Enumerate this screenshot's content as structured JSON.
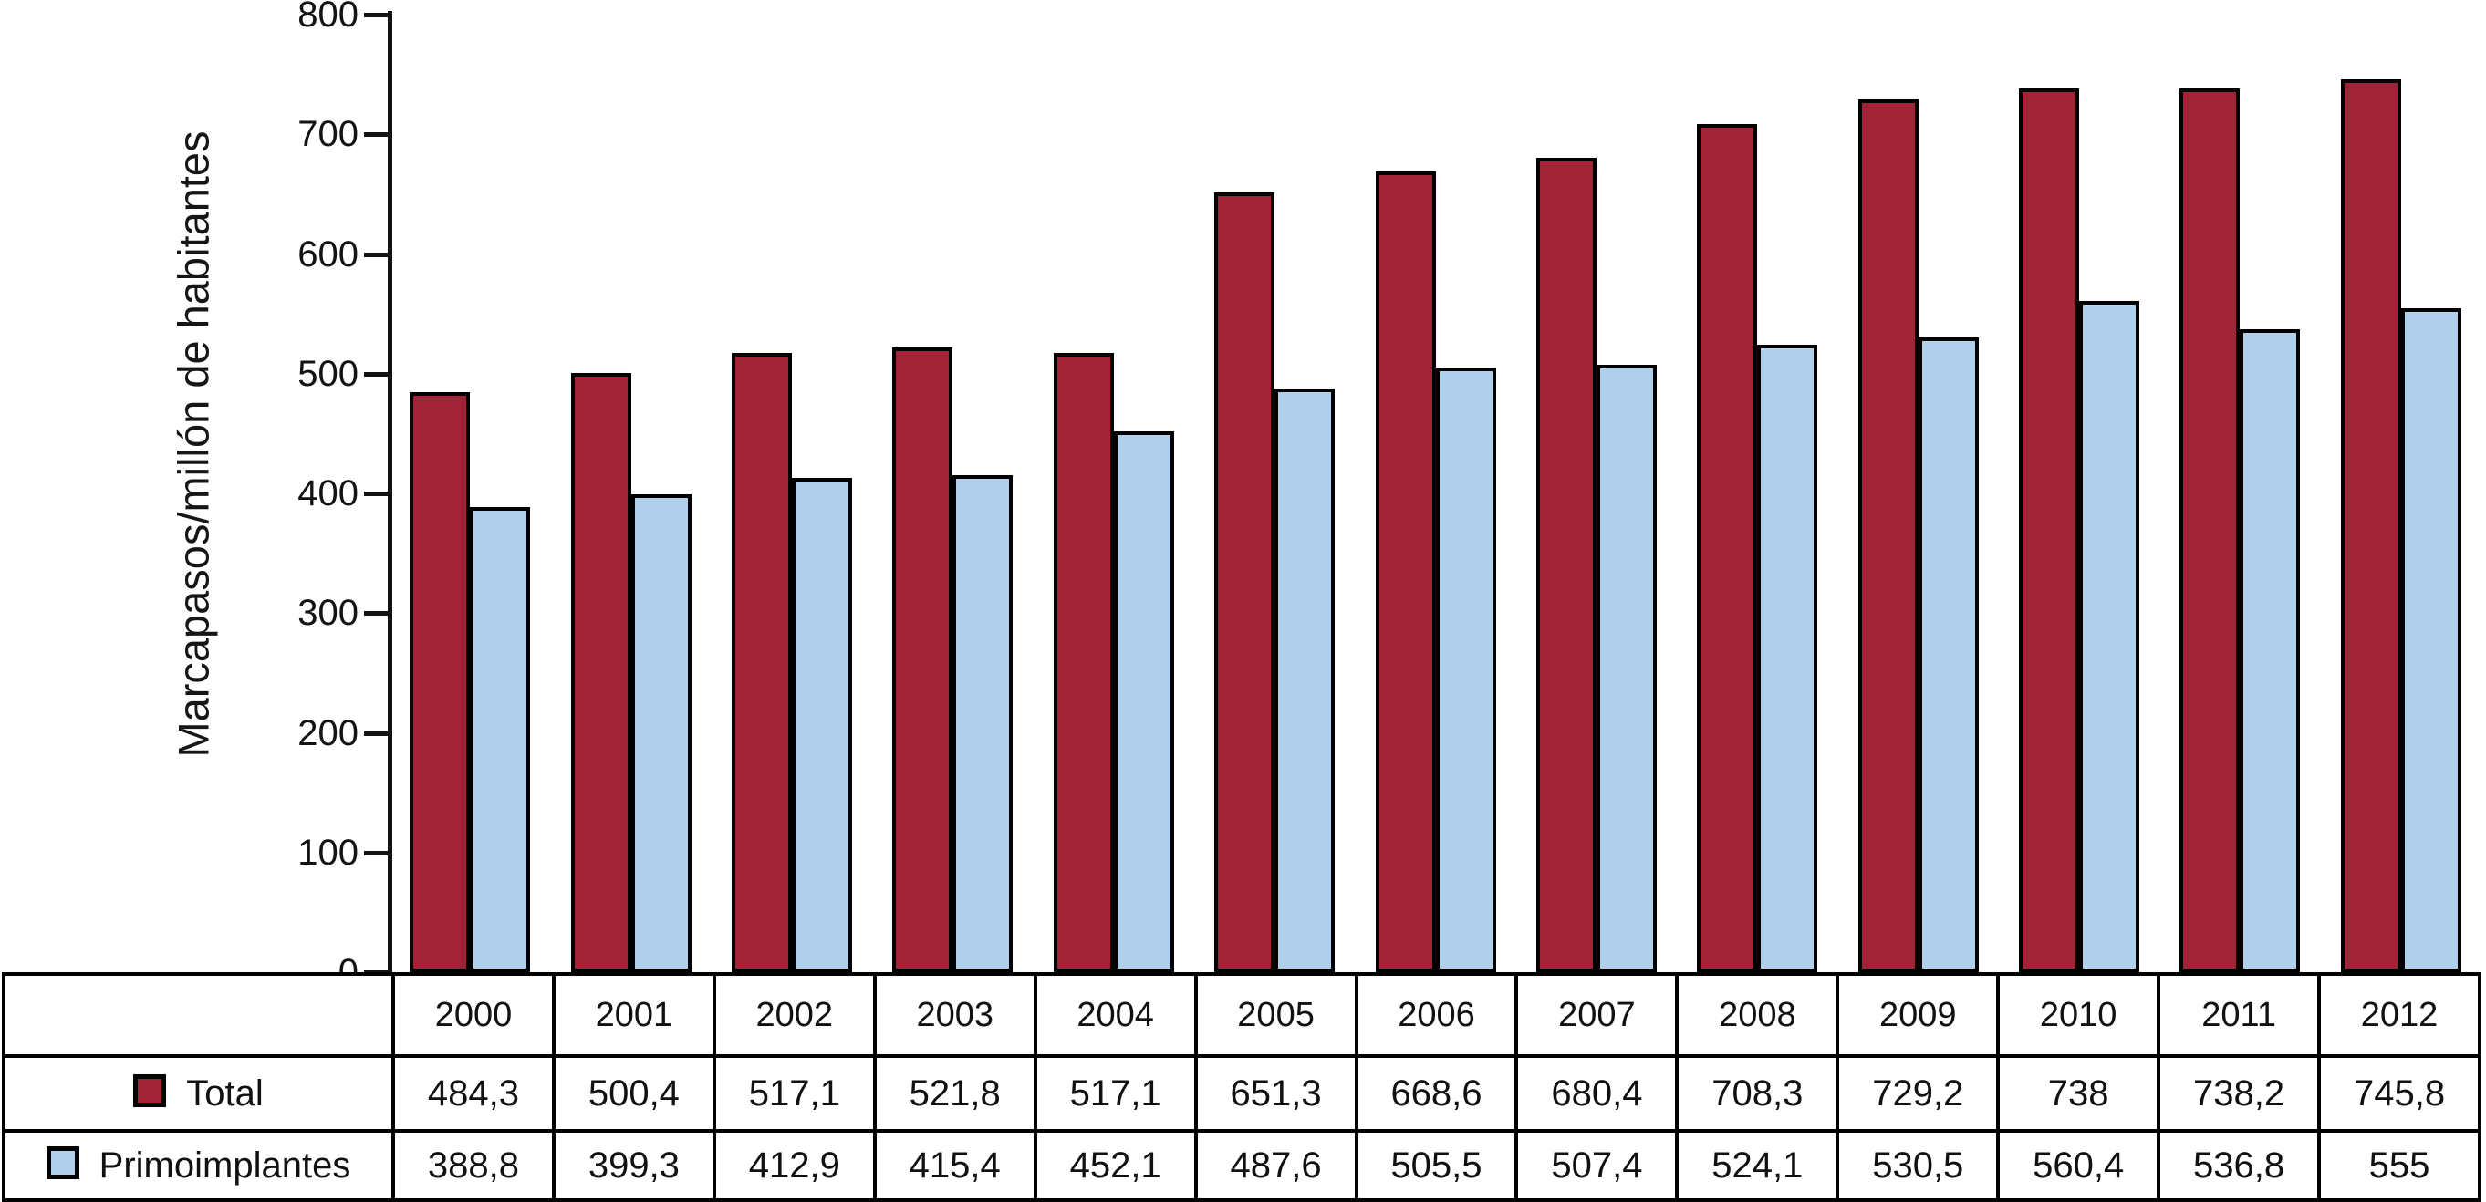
{
  "chart_data": {
    "type": "bar",
    "title": "",
    "xlabel": "",
    "ylabel": "Marcapasos/millón de habitantes",
    "ylim": [
      0,
      800
    ],
    "ytick_labels": [
      "0",
      "100",
      "200",
      "300",
      "400",
      "500",
      "600",
      "700",
      "800"
    ],
    "grid": false,
    "legend_position": "table-row-headers-left",
    "categories": [
      "2000",
      "2001",
      "2002",
      "2003",
      "2004",
      "2005",
      "2006",
      "2007",
      "2008",
      "2009",
      "2010",
      "2011",
      "2012"
    ],
    "series": [
      {
        "name": "Total",
        "color": "#A22238",
        "values": [
          484.3,
          500.4,
          517.1,
          521.8,
          517.1,
          651.3,
          668.6,
          680.4,
          708.3,
          729.2,
          738,
          738.2,
          745.8
        ],
        "labels": [
          "484,3",
          "500,4",
          "517,1",
          "521,8",
          "517,1",
          "651,3",
          "668,6",
          "680,4",
          "708,3",
          "729,2",
          "738",
          "738,2",
          "745,8"
        ]
      },
      {
        "name": "Primoimplantes",
        "color": "#AFCFEA",
        "values": [
          388.8,
          399.3,
          412.9,
          415.4,
          452.1,
          487.6,
          505.5,
          507.4,
          524.1,
          530.5,
          560.4,
          536.8,
          555
        ],
        "labels": [
          "388,8",
          "399,3",
          "412,9",
          "415,4",
          "452,1",
          "487,6",
          "505,5",
          "507,4",
          "524,1",
          "530,5",
          "560,4",
          "536,8",
          "555"
        ]
      }
    ]
  },
  "colors": {
    "axis": "#131313",
    "bar_border": "#000000",
    "background": "#ffffff"
  }
}
